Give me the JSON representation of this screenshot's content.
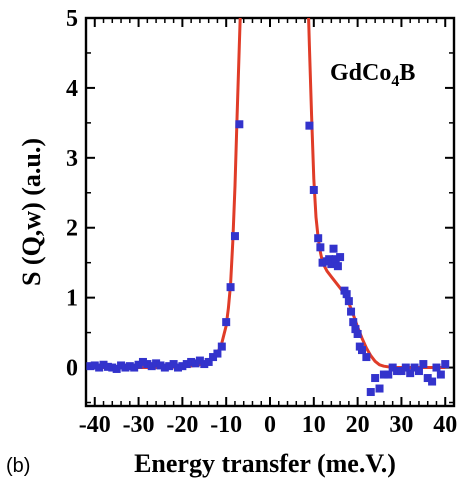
{
  "panel_label": "(b)",
  "sample_label": {
    "main": "GdCo",
    "sub": "4",
    "tail": "B"
  },
  "chart_data": {
    "type": "scatter",
    "xlabel": "Energy transfer (me.V.)",
    "ylabel": "S (Q,w) (a.u.)",
    "xlim": [
      -42,
      42
    ],
    "ylim": [
      -0.55,
      5
    ],
    "xticks": [
      -40,
      -30,
      -20,
      -10,
      0,
      10,
      20,
      30,
      40
    ],
    "xtick_labels": [
      "-40",
      "-30",
      "-20",
      "-10",
      "0",
      "10",
      "20",
      "30",
      "40"
    ],
    "yticks": [
      0,
      1,
      2,
      3,
      4,
      5
    ],
    "ytick_labels": [
      "0",
      "1",
      "2",
      "3",
      "4",
      "5"
    ],
    "series": [
      {
        "kind": "points",
        "color": "#3333cc",
        "marker": "square",
        "x": [
          -41,
          -40,
          -39,
          -38,
          -37,
          -36,
          -35,
          -34,
          -33,
          -32,
          -31,
          -30,
          -29,
          -28,
          -27,
          -26,
          -25,
          -24,
          -23,
          -22,
          -21,
          -20,
          -19,
          -18,
          -17,
          -16,
          -15,
          -14,
          -13,
          -12,
          -11,
          -10,
          -9,
          -8,
          -7,
          9,
          10,
          11,
          11.5,
          12,
          13,
          13.5,
          14,
          14.5,
          15,
          15.5,
          16,
          17,
          17.5,
          18,
          18.5,
          19,
          19.5,
          20,
          20.5,
          21,
          22,
          23,
          24,
          25,
          26,
          27,
          28,
          29,
          30,
          31,
          32,
          33,
          34,
          35,
          36,
          37,
          38,
          39,
          40
        ],
        "y": [
          0.02,
          0.03,
          0.0,
          0.04,
          0.01,
          0.0,
          -0.02,
          0.03,
          0.0,
          0.02,
          0.0,
          0.04,
          0.08,
          0.05,
          0.02,
          0.06,
          0.03,
          0.0,
          0.02,
          0.05,
          0.0,
          0.02,
          0.05,
          0.08,
          0.06,
          0.1,
          0.05,
          0.08,
          0.15,
          0.2,
          0.3,
          0.65,
          1.15,
          1.88,
          3.48,
          3.46,
          2.54,
          1.85,
          1.72,
          1.5,
          1.52,
          1.55,
          1.48,
          1.7,
          1.55,
          1.45,
          1.58,
          1.1,
          1.05,
          0.95,
          0.8,
          0.65,
          0.55,
          0.48,
          0.3,
          0.25,
          0.15,
          -0.35,
          -0.15,
          -0.3,
          -0.1,
          -0.1,
          0.0,
          -0.05,
          -0.05,
          0.0,
          -0.08,
          0.0,
          -0.05,
          0.05,
          -0.15,
          -0.2,
          0.0,
          -0.1,
          0.05
        ]
      },
      {
        "kind": "line",
        "color": "#e03c28",
        "x": [
          -41,
          -35,
          -30,
          -25,
          -20,
          -17,
          -15,
          -13,
          -12,
          -11,
          -10,
          -9.5,
          -9,
          -8.5,
          -8,
          -7.5,
          -7,
          -6.8,
          8.8,
          9,
          9.5,
          10,
          10.5,
          11,
          11.5,
          12,
          13,
          14,
          15,
          16,
          17,
          18,
          19,
          20,
          21,
          22,
          23,
          24,
          25,
          26,
          28,
          30,
          35,
          40
        ],
        "y": [
          0.0,
          0.0,
          0.0,
          0.0,
          0.01,
          0.03,
          0.06,
          0.12,
          0.2,
          0.35,
          0.6,
          0.85,
          1.2,
          1.8,
          2.6,
          3.6,
          4.6,
          5.0,
          5.0,
          4.6,
          3.6,
          2.7,
          2.15,
          1.85,
          1.65,
          1.5,
          1.38,
          1.3,
          1.22,
          1.14,
          1.05,
          0.92,
          0.76,
          0.58,
          0.42,
          0.28,
          0.17,
          0.09,
          0.04,
          0.02,
          0.0,
          0.0,
          0.0,
          0.0
        ]
      }
    ]
  }
}
